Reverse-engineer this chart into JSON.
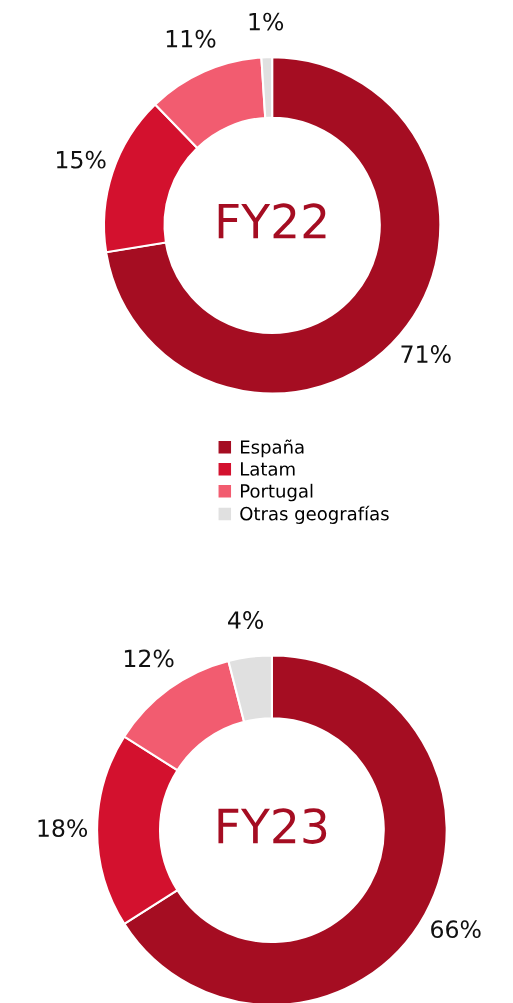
{
  "chart_data": [
    {
      "type": "donut",
      "title": "FY22",
      "categories": [
        "España",
        "Latam",
        "Portugal",
        "Otras geografías"
      ],
      "values": [
        71,
        15,
        11,
        1
      ],
      "colors": [
        "#a50d22",
        "#d3112e",
        "#f25c70",
        "#e0e0e0"
      ],
      "value_labels": [
        "71%",
        "15%",
        "11%",
        "1%"
      ],
      "legend": "bottom"
    },
    {
      "type": "donut",
      "title": "FY23",
      "categories": [
        null,
        null,
        null,
        null
      ],
      "values": [
        66,
        18,
        12,
        4
      ],
      "colors": [
        "#a50d22",
        "#d3112e",
        "#f25c70",
        "#e0e0e0"
      ],
      "value_labels": [
        "66%",
        "18%",
        "12%",
        "4%"
      ]
    }
  ]
}
